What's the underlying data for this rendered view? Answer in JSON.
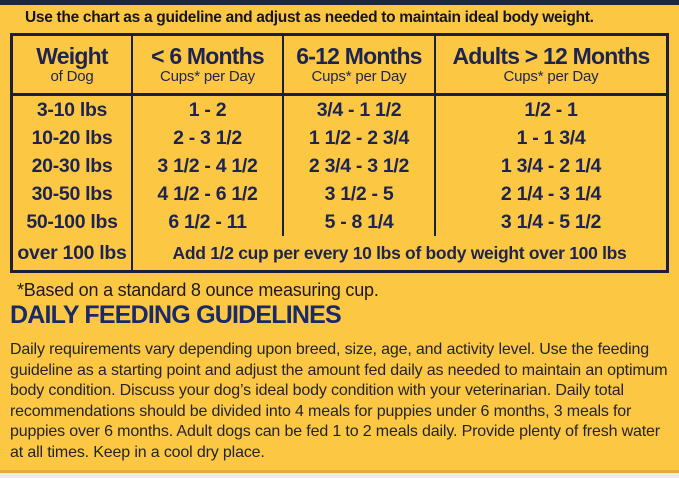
{
  "colors": {
    "background": "#FCC843",
    "table_navy": "#1E2450",
    "border_navy": "#1A1F3E",
    "headline_navy": "#1A2A66",
    "body_text": "#232329",
    "top_strip": "#23233F",
    "bottom_strip": "#F0E9E4"
  },
  "intro": "Use the chart as a guideline and adjust as needed to maintain ideal body weight.",
  "table": {
    "headers": [
      {
        "title": "Weight",
        "subtitle": "of Dog"
      },
      {
        "title": "< 6 Months",
        "subtitle": "Cups* per Day"
      },
      {
        "title": "6-12 Months",
        "subtitle": "Cups* per Day"
      },
      {
        "title": "Adults > 12 Months",
        "subtitle": "Cups* per Day"
      }
    ],
    "rows": [
      [
        "3-10 lbs",
        "1 - 2",
        "3/4 - 1 1/2",
        "1/2 - 1"
      ],
      [
        "10-20 lbs",
        "2 - 3 1/2",
        "1 1/2 - 2 3/4",
        "1 - 1 3/4"
      ],
      [
        "20-30 lbs",
        "3 1/2 - 4 1/2",
        "2 3/4 - 3 1/2",
        "1 3/4 - 2 1/4"
      ],
      [
        "30-50 lbs",
        "4 1/2 - 6 1/2",
        "3 1/2 - 5",
        "2 1/4 - 3 1/4"
      ],
      [
        "50-100 lbs",
        "6 1/2 - 11",
        "5 - 8 1/4",
        "3 1/4 - 5 1/2"
      ]
    ],
    "footer": {
      "weight": "over 100 lbs",
      "note": "Add 1/2 cup per every 10 lbs of body weight over 100 lbs"
    }
  },
  "footnote": "*Based on a standard 8 ounce measuring cup.",
  "headline": "DAILY FEEDING GUIDELINES",
  "body": "Daily requirements vary depending upon breed, size, age, and activity level. Use the feeding guideline as a starting point and adjust the amount fed daily as needed to maintain an optimum body condition. Discuss your dog’s ideal body condition with your veterinarian. Daily total recommendations should be divided into 4 meals for puppies under 6 months, 3 meals for puppies over 6 months. Adult dogs can be fed 1 to 2 meals daily. Provide plenty of fresh water at all times. Keep in a cool dry place.",
  "chart_data": {
    "type": "table",
    "title": "Daily Feeding Guidelines",
    "columns": [
      "Weight of Dog",
      "< 6 Months (Cups* per Day)",
      "6-12 Months (Cups* per Day)",
      "Adults > 12 Months (Cups* per Day)"
    ],
    "rows": [
      [
        "3-10 lbs",
        "1 - 2",
        "3/4 - 1 1/2",
        "1/2 - 1"
      ],
      [
        "10-20 lbs",
        "2 - 3 1/2",
        "1 1/2 - 2 3/4",
        "1 - 1 3/4"
      ],
      [
        "20-30 lbs",
        "3 1/2 - 4 1/2",
        "2 3/4 - 3 1/2",
        "1 3/4 - 2 1/4"
      ],
      [
        "30-50 lbs",
        "4 1/2 - 6 1/2",
        "3 1/2 - 5",
        "2 1/4 - 3 1/4"
      ],
      [
        "50-100 lbs",
        "6 1/2 - 11",
        "5 - 8 1/4",
        "3 1/4 - 5 1/2"
      ],
      [
        "over 100 lbs",
        "Add 1/2 cup per every 10 lbs of body weight over 100 lbs",
        "",
        ""
      ]
    ],
    "footnote": "*Based on a standard 8 ounce measuring cup."
  }
}
